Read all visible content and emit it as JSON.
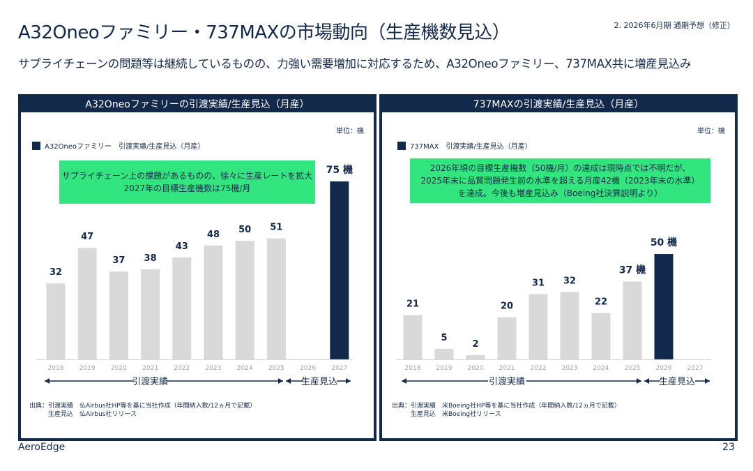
{
  "header": {
    "title": "A32Oneoファミリー・737MAXの市場動向（生産機数見込）",
    "section": "2. 2026年6月期 通期予想（修正）",
    "subtitle": "サプライチェーンの問題等は継続しているものの、力強い需要増加に対応するため、A32Oneoファミリー、737MAX共に増産見込み"
  },
  "panels": [
    {
      "heading": "A32Oneoファミリーの引渡実績/生産見込（月産）",
      "unit": "単位：機",
      "legend": "A32Oneoファミリー　引渡実績/生産見込（月産）",
      "note": "サプライチェーン上の課題があるものの、徐々に生産レートを拡大\n2027年の目標生産機数は75機/月",
      "actual_label": "引渡実績",
      "forecast_label": "生産見込",
      "source": "出典：引渡実績　仏Airbus社HP等を基に当社作成（年間納入数/12ヵ月で記載）\n　　　生産見込　仏Airbus社リリース"
    },
    {
      "heading": "737MAXの引渡実績/生産見込（月産）",
      "unit": "単位：機",
      "legend": "737MAX　引渡実績/生産見込（月産）",
      "note": "2026年頃の目標生産機数（50機/月）の達成は現時点では不明だが、\n2025年末に品質問題発生前の水準を超える月産42機（2023年末の水準）\nを達成。今後も増産見込み（Boeing社決算説明より）",
      "actual_label": "引渡実績",
      "forecast_label": "生産見込",
      "source": "出典：引渡実績　米Boeing社HP等を基に当社作成（年間納入数/12ヵ月で記載）\n　　　生産見込　米Boeing社リリース"
    }
  ],
  "chart_data": [
    {
      "type": "bar",
      "categories": [
        "2018",
        "2019",
        "2020",
        "2021",
        "2022",
        "2023",
        "2024",
        "2025",
        "2026",
        "2027"
      ],
      "values": [
        32,
        47,
        37,
        38,
        43,
        48,
        50,
        51,
        null,
        75
      ],
      "labels": [
        "32",
        "47",
        "37",
        "38",
        "43",
        "48",
        "50",
        "51",
        "",
        "75 機"
      ],
      "kinds": [
        "actual",
        "actual",
        "actual",
        "actual",
        "actual",
        "actual",
        "actual",
        "actual",
        "forecast",
        "forecast"
      ],
      "series_name": "A32Oneoファミリー　引渡実績/生産見込（月産）",
      "ylim": [
        0,
        75
      ],
      "colors": {
        "actual": "#d9d9d9",
        "forecast": "#13294b"
      },
      "grid": false
    },
    {
      "type": "bar",
      "categories": [
        "2018",
        "2019",
        "2020",
        "2021",
        "2022",
        "2023",
        "2024",
        "2025",
        "2026",
        "2027"
      ],
      "values": [
        21,
        5,
        2,
        20,
        31,
        32,
        22,
        37,
        50,
        null
      ],
      "labels": [
        "21",
        "5",
        "2",
        "20",
        "31",
        "32",
        "22",
        "37 機",
        "50 機",
        ""
      ],
      "kinds": [
        "actual",
        "actual",
        "actual",
        "actual",
        "actual",
        "actual",
        "actual",
        "actual",
        "forecast",
        "forecast"
      ],
      "series_name": "737MAX　引渡実績/生産見込（月産）",
      "ylim": [
        0,
        50
      ],
      "colors": {
        "actual": "#d9d9d9",
        "forecast": "#13294b"
      },
      "grid": false
    }
  ],
  "footer": {
    "brand": "AeroEdge",
    "page": "23"
  }
}
